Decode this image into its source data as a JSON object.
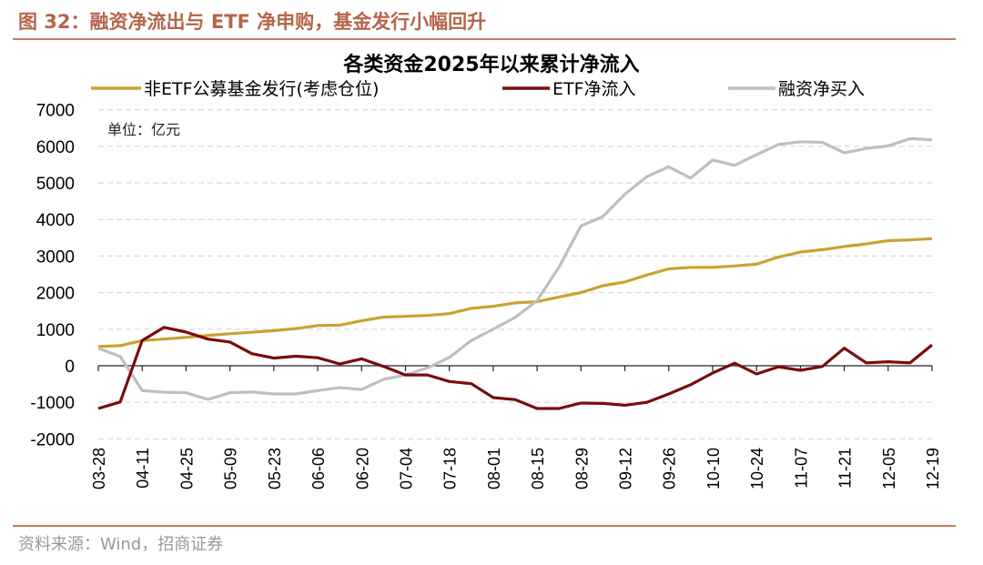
{
  "figure_title": "图 32：融资净流出与 ETF 净申购，基金发行小幅回升",
  "source": "资料来源：Wind，招商证券",
  "chart_data": {
    "type": "line",
    "title": "各类资金2025年以来累计净流入",
    "unit_note": "单位：亿元",
    "xlabel": "",
    "ylabel": "",
    "ylim": [
      -2000,
      7000
    ],
    "yticks": [
      "7000",
      "6000",
      "5000",
      "4000",
      "3000",
      "2000",
      "1000",
      "0",
      "-1000",
      "-2000"
    ],
    "ytick_values": [
      7000,
      6000,
      5000,
      4000,
      3000,
      2000,
      1000,
      0,
      -1000,
      -2000
    ],
    "grid": true,
    "legend": "top",
    "x": [
      "03-28",
      "04-04",
      "04-11",
      "04-18",
      "04-25",
      "05-02",
      "05-09",
      "05-16",
      "05-23",
      "05-30",
      "06-06",
      "06-13",
      "06-20",
      "06-27",
      "07-04",
      "07-11",
      "07-18",
      "07-25",
      "08-01",
      "08-08",
      "08-15",
      "08-22",
      "08-29",
      "09-05",
      "09-12",
      "09-19",
      "09-26",
      "10-03",
      "10-10",
      "10-17",
      "10-24",
      "10-31",
      "11-07",
      "11-14",
      "11-21",
      "11-28",
      "12-05",
      "12-12",
      "12-19"
    ],
    "xtick_labels": [
      "03-28",
      "04-11",
      "04-25",
      "05-09",
      "05-23",
      "06-06",
      "06-20",
      "07-04",
      "07-18",
      "08-01",
      "08-15",
      "08-29",
      "09-12",
      "09-26",
      "10-10",
      "10-24",
      "11-07",
      "11-21",
      "12-05",
      "12-19"
    ],
    "series": [
      {
        "name": "非ETF公募基金发行(考虑仓位)",
        "color": "#c9a230",
        "values": [
          525,
          550,
          690,
          730,
          775,
          830,
          875,
          915,
          960,
          1015,
          1100,
          1110,
          1230,
          1330,
          1350,
          1375,
          1425,
          1570,
          1625,
          1720,
          1750,
          1880,
          2000,
          2190,
          2290,
          2480,
          2650,
          2690,
          2690,
          2730,
          2775,
          2970,
          3110,
          3175,
          3260,
          3330,
          3420,
          3440,
          3475
        ]
      },
      {
        "name": "ETF净流入",
        "color": "#7a0c0c",
        "values": [
          -1170,
          -990,
          690,
          1050,
          920,
          730,
          650,
          330,
          210,
          260,
          220,
          50,
          190,
          -20,
          -250,
          -250,
          -430,
          -490,
          -870,
          -925,
          -1170,
          -1170,
          -1020,
          -1030,
          -1080,
          -1000,
          -770,
          -520,
          -200,
          70,
          -225,
          -30,
          -125,
          -20,
          480,
          80,
          110,
          80,
          570
        ]
      },
      {
        "name": "融资净买入",
        "color": "#bfbfbf",
        "values": [
          480,
          250,
          -680,
          -725,
          -740,
          -920,
          -740,
          -720,
          -770,
          -770,
          -680,
          -600,
          -650,
          -370,
          -250,
          -60,
          230,
          690,
          1000,
          1320,
          1780,
          2700,
          3820,
          4080,
          4690,
          5170,
          5440,
          5130,
          5625,
          5480,
          5770,
          6050,
          6125,
          6110,
          5820,
          5940,
          6010,
          6210,
          6180
        ]
      }
    ]
  }
}
